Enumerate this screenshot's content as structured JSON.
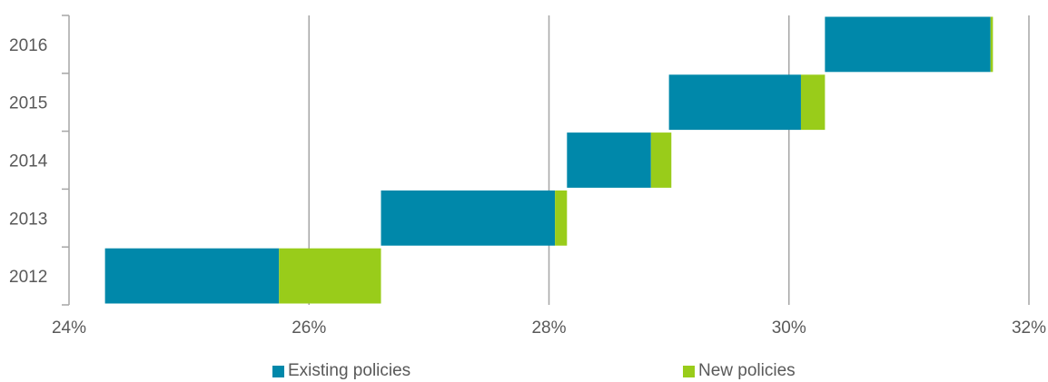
{
  "chart_data": {
    "type": "bar",
    "orientation": "horizontal",
    "stacked": true,
    "waterfall": true,
    "categories": [
      "2012",
      "2013",
      "2014",
      "2015",
      "2016"
    ],
    "x_ticks": [
      "24%",
      "26%",
      "28%",
      "30%",
      "32%"
    ],
    "xlim": [
      24,
      32
    ],
    "grid": "vertical",
    "legend_position": "bottom",
    "series": [
      {
        "name": "Existing policies",
        "color": "#0088AA",
        "start": [
          24.3,
          26.6,
          28.15,
          29.0,
          30.3
        ],
        "end": [
          25.75,
          28.05,
          28.85,
          30.1,
          31.68
        ]
      },
      {
        "name": "New policies",
        "color": "#99CC1A",
        "start": [
          25.75,
          28.05,
          28.85,
          30.1,
          31.68
        ],
        "end": [
          26.6,
          28.15,
          29.02,
          30.3,
          31.7
        ]
      }
    ]
  }
}
